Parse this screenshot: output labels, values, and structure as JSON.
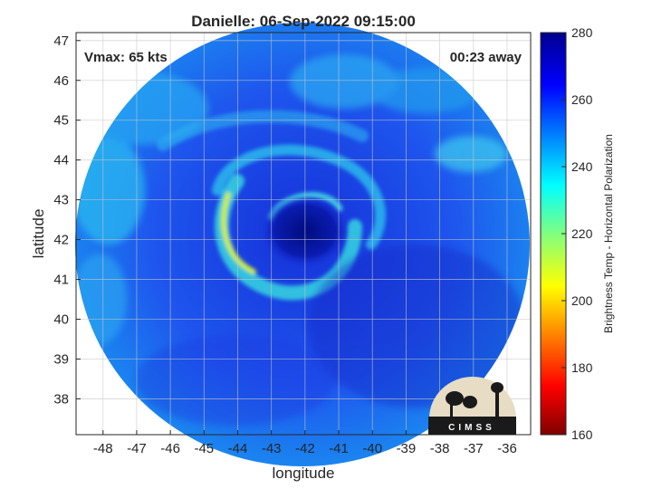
{
  "chart_data": {
    "type": "heatmap",
    "title": "Danielle: 06-Sep-2022 09:15:00",
    "xlabel": "longitude",
    "ylabel": "latitude",
    "xlim": [
      -48.8,
      -35.3
    ],
    "ylim": [
      37.1,
      47.2
    ],
    "x_ticks": [
      -48,
      -47,
      -46,
      -45,
      -44,
      -43,
      -42,
      -41,
      -40,
      -39,
      -38,
      -37,
      -36
    ],
    "y_ticks": [
      38,
      39,
      40,
      41,
      42,
      43,
      44,
      45,
      46,
      47
    ],
    "grid": true,
    "storm_center": {
      "lon": -41.8,
      "lat": 42.1
    },
    "annotations": {
      "vmax": "Vmax: 65 kts",
      "time_away": "00:23 away"
    },
    "colorbar": {
      "label": "Brightness Temp - Horizontal Polarization",
      "range": [
        160,
        280
      ],
      "ticks": [
        160,
        180,
        200,
        220,
        240,
        260,
        280
      ],
      "colormap": "jet"
    },
    "logo_text": "CIMSS"
  },
  "colors": {
    "swath_base": "#1b3fe0",
    "eye": "#00108c",
    "eyewall_warm": "#f1f51e",
    "eyewall_cool": "#2fe3d8",
    "background": "#ffffff"
  }
}
